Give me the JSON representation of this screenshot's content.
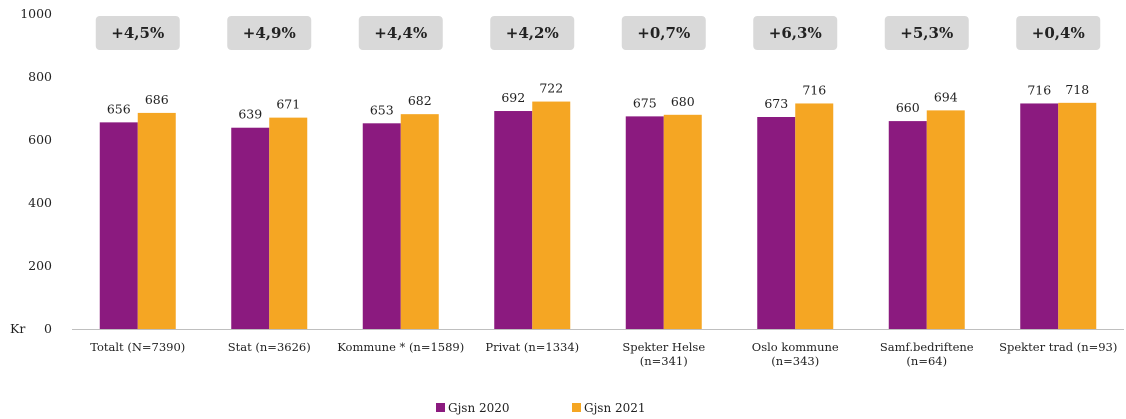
{
  "chart_data": {
    "type": "bar",
    "title": "",
    "xlabel": "",
    "ylabel": "Kr",
    "ylim": [
      0,
      1000
    ],
    "yticks": [
      0,
      200,
      400,
      600,
      800,
      1000
    ],
    "grid": false,
    "legend_position": "bottom-center",
    "categories": [
      [
        "Totalt (N=7390)"
      ],
      [
        "Stat (n=3626)"
      ],
      [
        "Kommune * (n=1589)"
      ],
      [
        "Privat (n=1334)"
      ],
      [
        "Spekter Helse",
        "(n=341)"
      ],
      [
        "Oslo kommune",
        "(n=343)"
      ],
      [
        "Samf.bedriftene",
        "(n=64)"
      ],
      [
        "Spekter trad (n=93)"
      ]
    ],
    "series": [
      {
        "name": "Gjsn 2020",
        "color": "#8b1a7f",
        "values": [
          656,
          639,
          653,
          692,
          675,
          673,
          660,
          716
        ]
      },
      {
        "name": "Gjsn 2021",
        "color": "#f5a623",
        "values": [
          686,
          671,
          682,
          722,
          680,
          716,
          694,
          718
        ]
      }
    ],
    "annotations": [
      "+4,5%",
      "+4,9%",
      "+4,4%",
      "+4,2%",
      "+0,7%",
      "+6,3%",
      "+5,3%",
      "+0,4%"
    ],
    "annotation_box_color": "#d9d9d9"
  }
}
